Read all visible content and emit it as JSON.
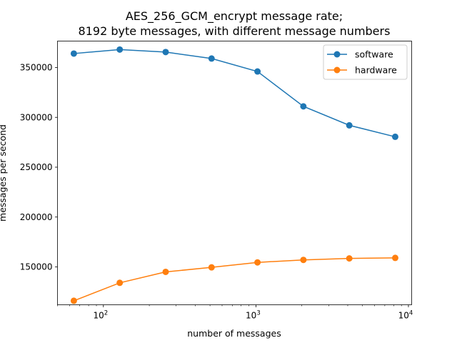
{
  "chart_data": {
    "type": "line",
    "title_line1": "AES_256_GCM_encrypt message rate;",
    "title_line2": "8192 byte messages, with different message numbers",
    "xlabel": "number of messages",
    "ylabel": "messages per second",
    "xscale": "log",
    "xlim": [
      50,
      10500
    ],
    "ylim": [
      112000,
      376500
    ],
    "x": [
      64,
      128,
      256,
      512,
      1024,
      2048,
      4096,
      8192
    ],
    "series": [
      {
        "name": "software",
        "color": "#1f77b4",
        "values": [
          364000,
          368000,
          365500,
          359000,
          346000,
          311000,
          292000,
          280500
        ]
      },
      {
        "name": "hardware",
        "color": "#ff7f0e",
        "values": [
          116000,
          134000,
          145000,
          149500,
          154500,
          157000,
          158500,
          159000
        ]
      }
    ],
    "x_major_ticks": [
      {
        "value": 100,
        "label": "10",
        "exp": "2"
      },
      {
        "value": 1000,
        "label": "10",
        "exp": "3"
      },
      {
        "value": 10000,
        "label": "10",
        "exp": "4"
      }
    ],
    "y_ticks": [
      {
        "value": 150000,
        "label": "150000"
      },
      {
        "value": 200000,
        "label": "200000"
      },
      {
        "value": 250000,
        "label": "250000"
      },
      {
        "value": 300000,
        "label": "300000"
      },
      {
        "value": 350000,
        "label": "350000"
      }
    ],
    "legend": {
      "loc": "upper right"
    },
    "grid": false
  }
}
